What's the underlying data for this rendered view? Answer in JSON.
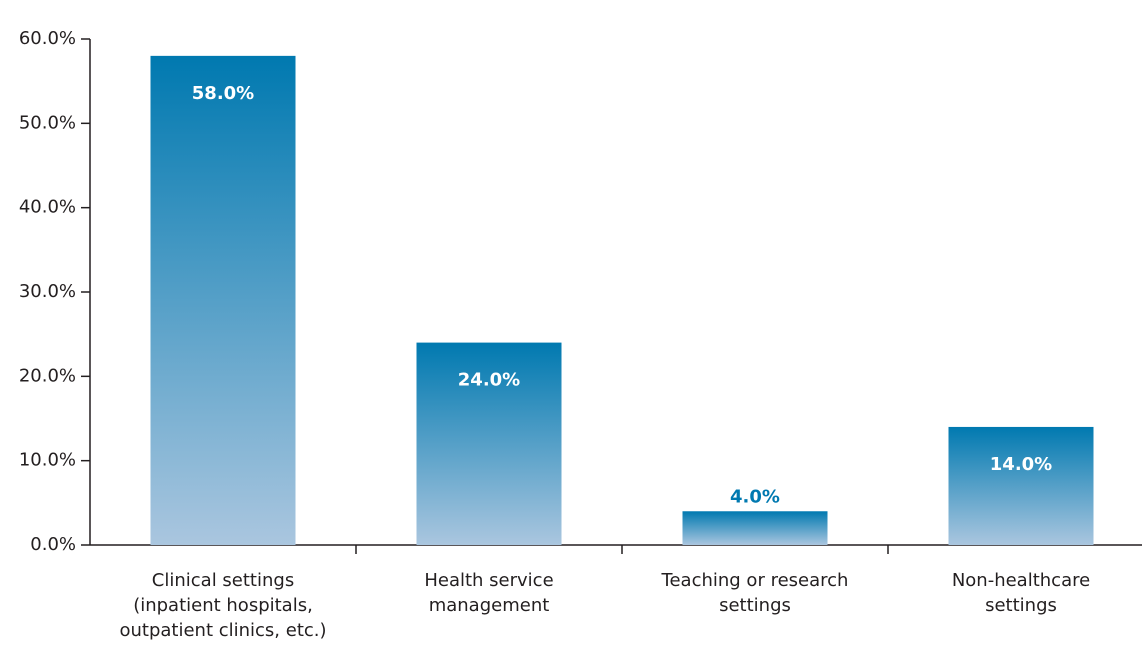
{
  "chart_data": {
    "type": "bar",
    "categories": [
      "Clinical settings\n(inpatient hospitals,\noutpatient clinics, etc.)",
      "Health service\nmanagement",
      "Teaching or research\nsettings",
      "Non-healthcare\nsettings"
    ],
    "values": [
      58,
      24,
      4,
      14
    ],
    "value_labels": [
      "58.0%",
      "24.0%",
      "4.0%",
      "14.0%"
    ],
    "color": "#0079b0",
    "ylim": [
      0,
      60
    ],
    "yticks": [
      {
        "value": 0,
        "label": "0.0%"
      },
      {
        "value": 10,
        "label": "10.0%"
      },
      {
        "value": 20,
        "label": "20.0%"
      },
      {
        "value": 30,
        "label": "30.0%"
      },
      {
        "value": 40,
        "label": "40.0%"
      },
      {
        "value": 50,
        "label": "50.0%"
      },
      {
        "value": 60,
        "label": "60.0%"
      }
    ],
    "grid": false
  }
}
